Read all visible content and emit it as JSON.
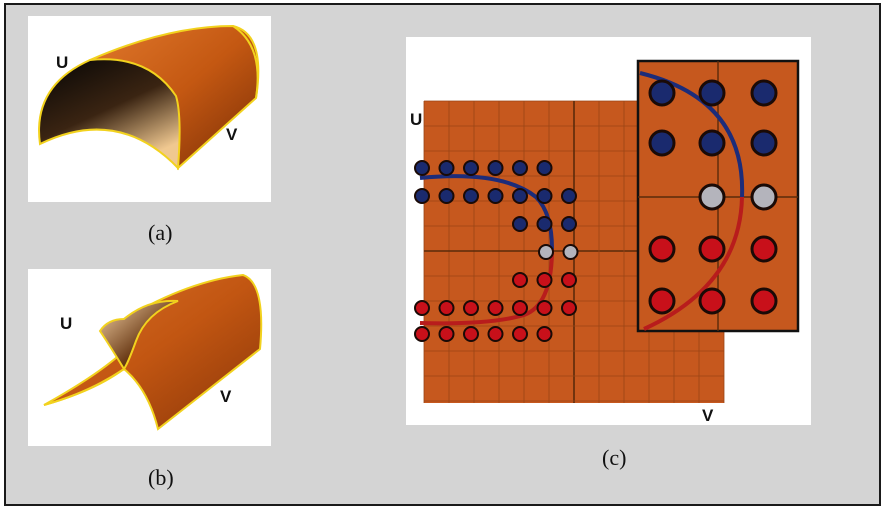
{
  "figure": {
    "captions": {
      "a": "(a)",
      "b": "(b)",
      "c": "(c)"
    },
    "axis_labels": {
      "u": "U",
      "v": "V"
    }
  },
  "colors": {
    "frame_background": "#d4d4d4",
    "surface_orange": "#c85a14",
    "surface_edge": "#f2d21e",
    "grid_background": "#c6581e",
    "point_blue": "#1a2a6e",
    "point_red": "#c8101a",
    "point_grey": "#b4b4bc",
    "curve_blue": "#1c2c7a",
    "curve_red": "#b81c1c"
  },
  "control_point_grid": {
    "rows": [
      [
        "blue",
        "blue",
        "blue",
        "blue",
        "blue",
        "blue"
      ],
      [
        "blue",
        "blue",
        "blue",
        "blue",
        "blue",
        "blue",
        "blue"
      ],
      [
        "blue",
        "blue",
        "blue"
      ],
      [
        "grey",
        "grey"
      ],
      [
        "red",
        "red",
        "red"
      ],
      [
        "red",
        "red",
        "red",
        "red",
        "red",
        "red",
        "red"
      ],
      [
        "red",
        "red",
        "red",
        "red",
        "red",
        "red"
      ]
    ],
    "zoom_rows": [
      [
        "blue",
        "blue",
        "blue"
      ],
      [
        "blue",
        "blue",
        "blue"
      ],
      [
        "grey",
        "grey"
      ],
      [
        "red",
        "red",
        "red"
      ],
      [
        "red",
        "red",
        "red"
      ]
    ]
  }
}
